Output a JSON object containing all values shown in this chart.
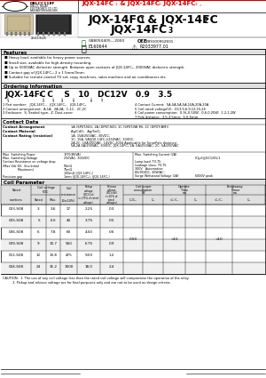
{
  "bg_color": "#ffffff",
  "red_color": "#cc0000",
  "dark_gray": "#e0e0e0",
  "features": [
    "Heavy load, available for heavy power sources.",
    "Small size, available for high-density mounting.",
    "Up to 5000VAC dielectric strength. Between open contacts of JQX-14FC₃, 2000VAC dielectric strength.",
    "Contact gap of JQX-14FC₃: 2 x 1.5mm/3mm.",
    "Suitable for remote control TV set, copy machines, sales machine and air conditioners etc."
  ],
  "ordering_desc_left": [
    "1 Part number:   JQX-14FC₁,   JQX-14FC₂,   JQX-14FC₃",
    "2 Contact arrangement:  A-1A,  2A-2A,  C-1C,  2C-2C",
    "3 Enclosure:  S- Sealed type,  Z- Dust-cover"
  ],
  "ordering_desc_right": [
    "4 Contact Current:  5A,5A,5A,5A,10A,20A,20A",
    "5 Coil rated voltage(V):  DC3,5,6,9,12,15,24",
    "6 Coil power consumption:  0.9L-0.50W;  0.6-0.25W;  1.2-1.2W",
    "7 Pole distance:  3.5-3.5mm;  5.0-5mm"
  ],
  "coil_rows": [
    [
      "003-S08",
      "3",
      "3.6",
      "17",
      "2.25",
      "0.3"
    ],
    [
      "005-S08",
      "5",
      "6.0",
      "40",
      "3.75",
      "0.5"
    ],
    [
      "006-S08",
      "6",
      "7.8",
      "60",
      "4.50",
      "0.6"
    ],
    [
      "009-S08",
      "9",
      "10.7",
      "550",
      "6.75",
      "0.9"
    ],
    [
      "012-S08",
      "12",
      "13.8",
      "475",
      "9.00",
      "1.2"
    ],
    [
      "024-S08",
      "24",
      "31.2",
      "1500",
      "18.0",
      "2.4"
    ]
  ]
}
